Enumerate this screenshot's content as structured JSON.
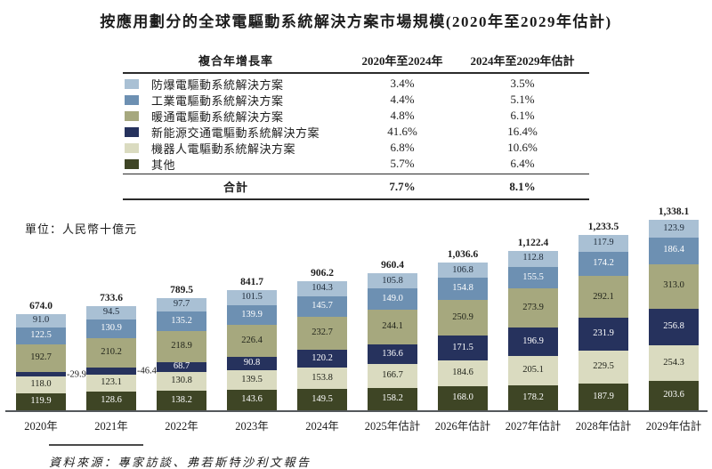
{
  "title": "按應用劃分的全球電驅動系統解決方案市場規模(2020年至2029年估計)",
  "unit_label": "單位：人民幣十億元",
  "source": "資料來源：專家訪談、弗若斯特沙利文報告",
  "cagr_table": {
    "header": {
      "col_label": "複合年增長率",
      "col1": "2020年至2024年",
      "col2": "2024年至2029年估計"
    },
    "rows": [
      {
        "label": "防爆電驅動系統解決方案",
        "color": "#a9c0d4",
        "v1": "3.4%",
        "v2": "3.5%"
      },
      {
        "label": "工業電驅動系統解決方案",
        "color": "#6d90b2",
        "v1": "4.4%",
        "v2": "5.1%"
      },
      {
        "label": "暖通電驅動系統解決方案",
        "color": "#a6a87e",
        "v1": "4.8%",
        "v2": "6.1%"
      },
      {
        "label": "新能源交通電驅動系統解決方案",
        "color": "#26325d",
        "v1": "41.6%",
        "v2": "16.4%"
      },
      {
        "label": "機器人電驅動系統解決方案",
        "color": "#dadbc0",
        "v1": "6.8%",
        "v2": "10.6%"
      },
      {
        "label": "其他",
        "color": "#3e4525",
        "v1": "5.7%",
        "v2": "6.4%"
      }
    ],
    "total": {
      "label": "合計",
      "v1": "7.7%",
      "v2": "8.1%"
    }
  },
  "chart_data": {
    "type": "bar",
    "stacked": true,
    "unit": "人民幣十億元",
    "categories": [
      "2020年",
      "2021年",
      "2022年",
      "2023年",
      "2024年",
      "2025年估計",
      "2026年估計",
      "2027年估計",
      "2028年估計",
      "2029年估計"
    ],
    "totals": [
      "674.0",
      "733.6",
      "789.5",
      "841.7",
      "906.2",
      "960.4",
      "1,036.6",
      "1,122.4",
      "1,233.5",
      "1,338.1"
    ],
    "series": [
      {
        "name": "防爆電驅動系統解決方案",
        "color": "#a9c0d4",
        "text_color": "#1e2a38",
        "values": [
          91.0,
          94.5,
          97.7,
          101.5,
          104.3,
          105.8,
          106.8,
          112.8,
          117.9,
          123.9
        ]
      },
      {
        "name": "工業電驅動系統解決方案",
        "color": "#6d90b2",
        "text_color": "#ffffff",
        "values": [
          122.5,
          130.9,
          135.2,
          139.9,
          145.7,
          149.0,
          154.8,
          155.5,
          174.2,
          186.4
        ]
      },
      {
        "name": "暖通電驅動系統解決方案",
        "color": "#a6a87e",
        "text_color": "#20231a",
        "values": [
          192.7,
          210.2,
          218.9,
          226.4,
          232.7,
          244.1,
          250.9,
          273.9,
          292.1,
          313.0
        ]
      },
      {
        "name": "新能源交通電驅動系統解決方案",
        "color": "#26325d",
        "text_color": "#ffffff",
        "values": [
          29.9,
          46.4,
          68.7,
          90.8,
          120.2,
          136.6,
          171.5,
          196.9,
          231.9,
          256.8
        ]
      },
      {
        "name": "機器人電驅動系統解決方案",
        "color": "#dadbc0",
        "text_color": "#20231a",
        "values": [
          118.0,
          123.1,
          130.8,
          139.5,
          153.8,
          166.7,
          184.6,
          205.1,
          229.5,
          254.3
        ]
      },
      {
        "name": "其他",
        "color": "#3e4525",
        "text_color": "#ffffff",
        "values": [
          119.9,
          128.6,
          138.2,
          143.6,
          149.5,
          158.2,
          168.0,
          178.2,
          187.9,
          203.6
        ]
      }
    ],
    "callouts": [
      {
        "category_index": 0,
        "series_index": 3,
        "label": "-29.9"
      },
      {
        "category_index": 1,
        "series_index": 3,
        "label": "-46.4"
      }
    ],
    "legend_position": "table-top",
    "grid": false
  }
}
